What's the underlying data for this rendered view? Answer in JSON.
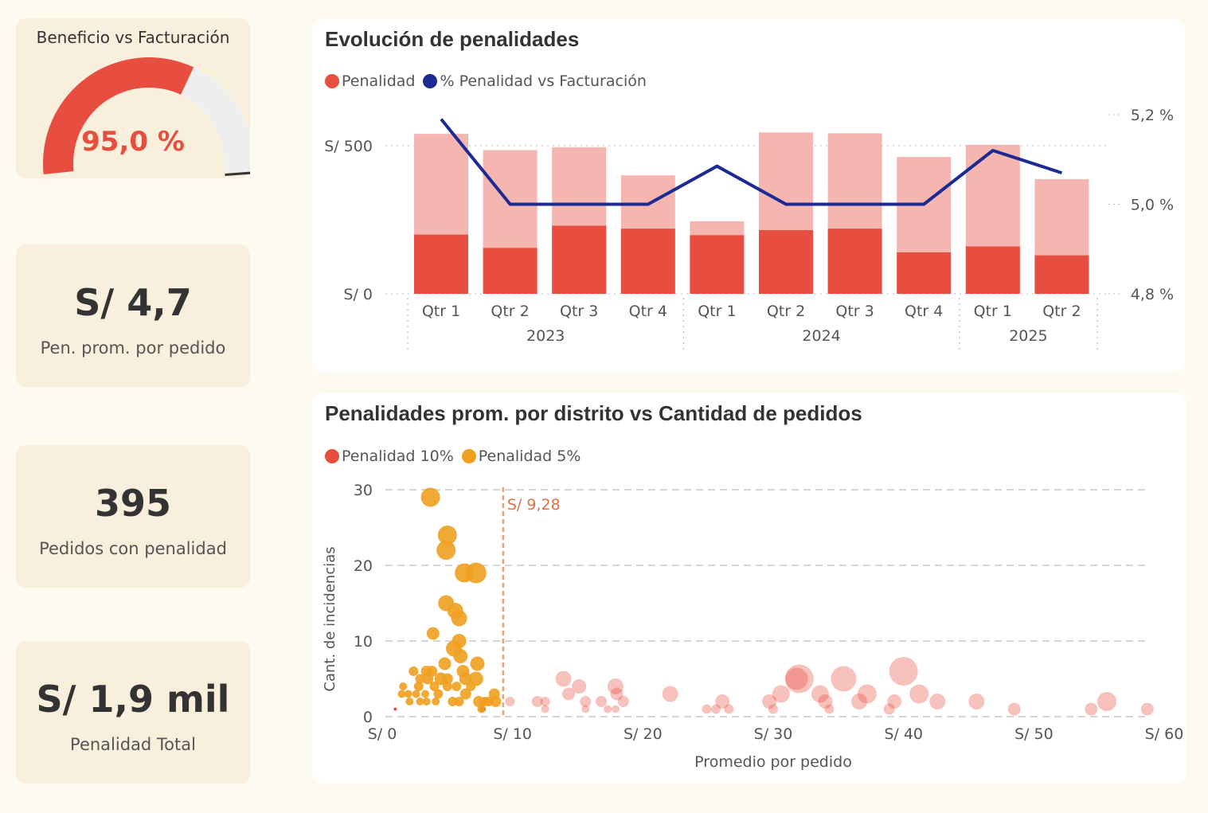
{
  "kpis": {
    "gauge": {
      "title": "Beneficio vs Facturación",
      "value": "95,0 %",
      "fraction": 0.95
    },
    "avg_penalty": {
      "value": "S/ 4,7",
      "label": "Pen. prom. por pedido"
    },
    "orders": {
      "value": "395",
      "label": "Pedidos con penalidad"
    },
    "total": {
      "value": "S/ 1,9 mil",
      "label": "Penalidad Total"
    }
  },
  "colors": {
    "red": "#e84e40",
    "pink": "#f5b5b0",
    "navy": "#1c2a94",
    "orange": "#f0a020",
    "refline": "#e8a07a",
    "card": "#f8f0dd",
    "bg": "#fdfaf0"
  },
  "chart_data": [
    {
      "type": "bar",
      "title": "Evolución de penalidades",
      "legend": [
        "Penalidad",
        "% Penalidad vs Facturación"
      ],
      "categories": [
        "Qtr 1",
        "Qtr 2",
        "Qtr 3",
        "Qtr 4",
        "Qtr 1",
        "Qtr 2",
        "Qtr 3",
        "Qtr 4",
        "Qtr 1",
        "Qtr 2"
      ],
      "groups": [
        {
          "label": "2023",
          "count": 4
        },
        {
          "label": "2024",
          "count": 4
        },
        {
          "label": "2025",
          "count": 2
        }
      ],
      "series": [
        {
          "name": "Penalidad",
          "values": [
            540,
            485,
            495,
            400,
            245,
            545,
            542,
            462,
            503,
            387
          ],
          "color": "#f5b5b0"
        },
        {
          "name": "Penalidad",
          "values": [
            200,
            155,
            230,
            220,
            198,
            215,
            220,
            140,
            160,
            130
          ],
          "color": "#e84e40"
        }
      ],
      "line": {
        "name": "% Penalidad vs Facturación",
        "values": [
          5.19,
          5.0,
          5.0,
          5.0,
          5.085,
          5.0,
          5.0,
          5.0,
          5.12,
          5.07
        ]
      },
      "y_ticks": [
        "S/ 0",
        "S/ 500"
      ],
      "ylim": [
        0,
        500
      ],
      "y2_ticks": [
        "4,8 %",
        "5,0 %",
        "5,2 %"
      ],
      "y2lim": [
        4.8,
        5.2
      ]
    },
    {
      "type": "scatter",
      "title": "Penalidades prom. por distrito vs Cantidad de pedidos",
      "legend": [
        "Penalidad 10%",
        "Penalidad 5%"
      ],
      "xlabel": "Promedio por pedido",
      "ylabel": "Cant. de incidencias",
      "x_ticks": [
        "S/ 0",
        "S/ 10",
        "S/ 20",
        "S/ 30",
        "S/ 40",
        "S/ 50",
        "S/ 60"
      ],
      "xlim": [
        0,
        60
      ],
      "y_ticks": [
        "0",
        "10",
        "20",
        "30"
      ],
      "ylim": [
        0,
        30
      ],
      "reference_line": {
        "x": 9.28,
        "label": "S/ 9,28"
      },
      "series": [
        {
          "name": "Penalidad 5%",
          "color": "#f0a020",
          "points": [
            [
              3.7,
              29,
              12
            ],
            [
              5.0,
              24,
              12
            ],
            [
              4.9,
              22,
              12
            ],
            [
              6.3,
              19,
              12
            ],
            [
              7.2,
              19,
              13
            ],
            [
              4.9,
              15,
              10
            ],
            [
              5.6,
              14,
              10
            ],
            [
              5.9,
              13,
              10
            ],
            [
              3.9,
              11,
              8
            ],
            [
              5.9,
              10,
              9
            ],
            [
              5.5,
              9,
              10
            ],
            [
              6.0,
              8,
              9
            ],
            [
              7.3,
              7,
              9
            ],
            [
              4.8,
              7,
              8
            ],
            [
              3.4,
              6,
              7
            ],
            [
              3.8,
              6,
              7
            ],
            [
              6.2,
              6,
              8
            ],
            [
              2.4,
              6,
              6
            ],
            [
              4.5,
              5,
              8
            ],
            [
              5.0,
              5,
              7
            ],
            [
              6.4,
              5,
              8
            ],
            [
              7.2,
              5,
              9
            ],
            [
              3.5,
              5,
              7
            ],
            [
              2.9,
              5,
              6
            ],
            [
              1.6,
              4,
              5
            ],
            [
              2.8,
              4,
              6
            ],
            [
              4.0,
              4,
              6
            ],
            [
              5.0,
              4,
              6
            ],
            [
              5.7,
              4,
              6
            ],
            [
              6.8,
              4,
              6
            ],
            [
              1.5,
              3,
              5
            ],
            [
              2.0,
              3,
              5
            ],
            [
              2.6,
              3,
              5
            ],
            [
              3.3,
              3,
              5
            ],
            [
              4.3,
              3,
              6
            ],
            [
              6.4,
              3,
              7
            ],
            [
              8.6,
              3,
              7
            ],
            [
              2.1,
              2,
              5
            ],
            [
              2.9,
              2,
              5
            ],
            [
              3.4,
              2,
              5
            ],
            [
              4.1,
              2,
              5
            ],
            [
              5.4,
              2,
              6
            ],
            [
              5.9,
              2,
              6
            ],
            [
              7.4,
              2,
              7
            ],
            [
              8.2,
              2,
              6
            ],
            [
              8.7,
              2,
              7
            ],
            [
              7.9,
              2,
              6
            ],
            [
              7.6,
              1,
              5
            ]
          ]
        },
        {
          "name": "Penalidad 10%",
          "color": "#e84e40",
          "points": [
            [
              1.0,
              1,
              2
            ],
            [
              7.7,
              1,
              4
            ],
            [
              7.8,
              2,
              5
            ],
            [
              9.8,
              2,
              6
            ],
            [
              11.9,
              2,
              7
            ],
            [
              12.5,
              2,
              6
            ],
            [
              12.5,
              1,
              5
            ],
            [
              13.9,
              5,
              10
            ],
            [
              14.3,
              3,
              8
            ],
            [
              15.1,
              4,
              9
            ],
            [
              15.6,
              2,
              7
            ],
            [
              15.6,
              1,
              5
            ],
            [
              16.8,
              2,
              7
            ],
            [
              17.3,
              1,
              5
            ],
            [
              17.9,
              4,
              10
            ],
            [
              18.0,
              3,
              8
            ],
            [
              18.5,
              2,
              7
            ],
            [
              17.9,
              1,
              5
            ],
            [
              22.1,
              3,
              10
            ],
            [
              24.9,
              1,
              6
            ],
            [
              25.6,
              1,
              6
            ],
            [
              26.1,
              2,
              9
            ],
            [
              26.6,
              1,
              6
            ],
            [
              29.7,
              2,
              9
            ],
            [
              30.0,
              1,
              6
            ],
            [
              30.6,
              3,
              11
            ],
            [
              31.8,
              5,
              14
            ],
            [
              32.0,
              5,
              18
            ],
            [
              33.6,
              3,
              11
            ],
            [
              34.0,
              2,
              9
            ],
            [
              34.3,
              1,
              6
            ],
            [
              35.4,
              5,
              16
            ],
            [
              36.6,
              2,
              10
            ],
            [
              37.2,
              3,
              12
            ],
            [
              38.9,
              1,
              7
            ],
            [
              39.3,
              2,
              9
            ],
            [
              40.0,
              6,
              18
            ],
            [
              41.2,
              3,
              12
            ],
            [
              42.6,
              2,
              10
            ],
            [
              45.6,
              2,
              10
            ],
            [
              48.5,
              1,
              8
            ],
            [
              54.4,
              1,
              8
            ],
            [
              55.6,
              2,
              12
            ],
            [
              58.7,
              1,
              8
            ]
          ]
        }
      ]
    }
  ]
}
